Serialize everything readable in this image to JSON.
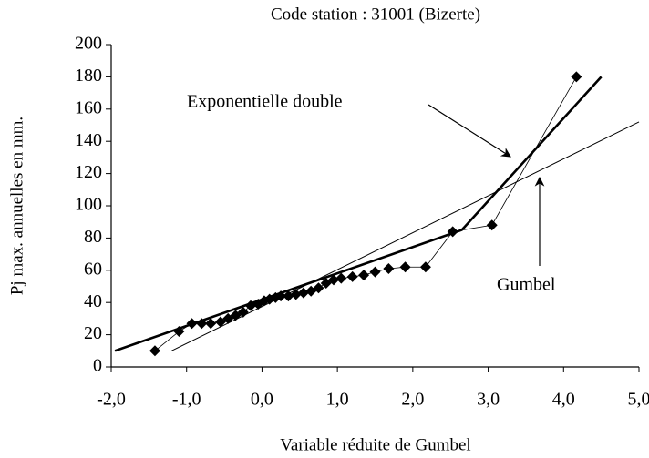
{
  "chart_data": {
    "type": "scatter",
    "title": "Code station : 31001 (Bizerte)",
    "xlabel": "Variable réduite de Gumbel",
    "ylabel": "Pj max. annuelles en mm.",
    "annotations": [
      "Exponentielle double",
      "Gumbel"
    ],
    "xlim": [
      -2.0,
      5.0
    ],
    "ylim": [
      0,
      200
    ],
    "xticks": [
      {
        "value": -2,
        "label": "-2,0"
      },
      {
        "value": -1,
        "label": "-1,0"
      },
      {
        "value": 0,
        "label": "0,0"
      },
      {
        "value": 1,
        "label": "1,0"
      },
      {
        "value": 2,
        "label": "2,0"
      },
      {
        "value": 3,
        "label": "3,0"
      },
      {
        "value": 4,
        "label": "4,0"
      },
      {
        "value": 5,
        "label": "5,0"
      }
    ],
    "yticks": [
      0,
      20,
      40,
      60,
      80,
      100,
      120,
      140,
      160,
      180,
      200
    ],
    "series": [
      {
        "type": "scatter",
        "color": "#000000",
        "x": [
          -1.42,
          -1.1,
          -0.93,
          -0.8,
          -0.68,
          -0.55,
          -0.45,
          -0.35,
          -0.25,
          -0.15,
          -0.05,
          0.03,
          0.1,
          0.18,
          0.25,
          0.35,
          0.45,
          0.55,
          0.65,
          0.75,
          0.85,
          0.95,
          1.05,
          1.2,
          1.35,
          1.5,
          1.68,
          1.9,
          2.17,
          2.53,
          3.05,
          4.17
        ],
        "values": [
          10,
          22,
          27,
          27,
          27,
          28,
          30,
          32,
          34,
          38,
          39,
          41,
          42,
          43,
          44,
          44,
          45,
          46,
          47,
          49,
          52,
          54,
          55,
          56,
          57,
          59,
          61,
          62,
          62,
          84,
          88,
          180
        ]
      },
      {
        "type": "line",
        "color": "#000000",
        "x": [
          -1.95,
          2.65,
          4.5
        ],
        "values": [
          10,
          85,
          180
        ]
      },
      {
        "type": "line",
        "color": "#000000",
        "x": [
          -1.2,
          5.0
        ],
        "values": [
          10,
          152
        ]
      }
    ]
  }
}
